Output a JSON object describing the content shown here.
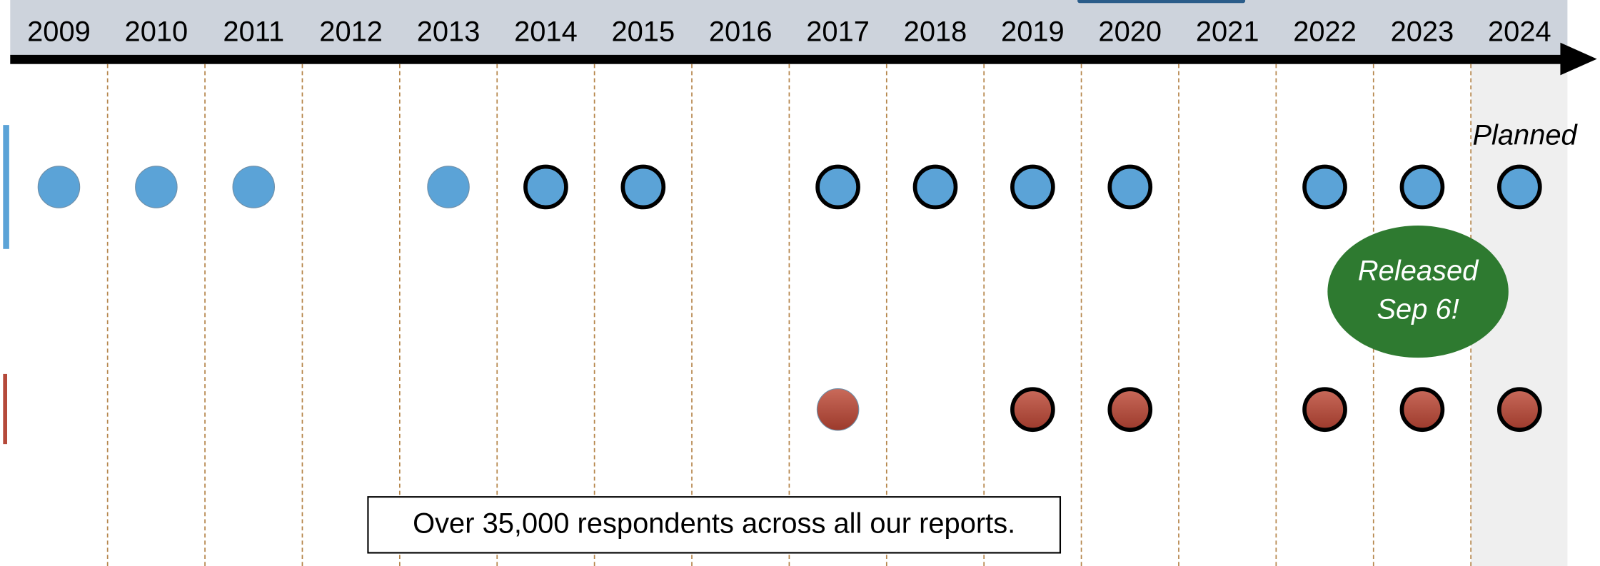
{
  "years": [
    "2009",
    "2010",
    "2011",
    "2012",
    "2013",
    "2014",
    "2015",
    "2016",
    "2017",
    "2018",
    "2019",
    "2020",
    "2021",
    "2022",
    "2023",
    "2024"
  ],
  "planned_label": "Planned",
  "release_note": "Released Sep 6!",
  "footer_note": "Over 35,000 respondents across all our reports.",
  "rows": [
    {
      "color": "#5ba3d7",
      "plain": [
        "2009",
        "2010",
        "2011",
        "2013"
      ],
      "outlined": [
        "2014",
        "2015",
        "2017",
        "2018",
        "2019",
        "2020",
        "2022",
        "2023",
        "2024"
      ]
    },
    {
      "color": "#b5493a",
      "plain": [
        "2017"
      ],
      "outlined": [
        "2019",
        "2020",
        "2022",
        "2023",
        "2024"
      ]
    }
  ]
}
